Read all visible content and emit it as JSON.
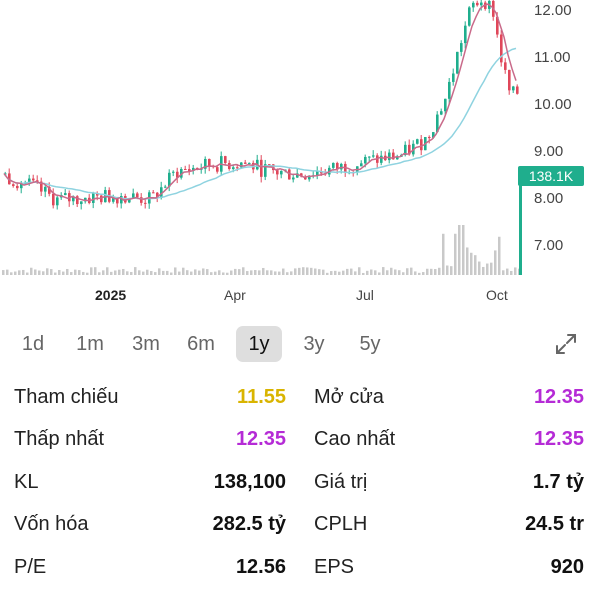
{
  "chart": {
    "y_axis_labels": [
      "12.00",
      "11.00",
      "10.00",
      "9.00",
      "8.00",
      "7.00"
    ],
    "x_axis_labels": [
      "2025",
      "Apr",
      "Jul",
      "Oct"
    ],
    "current_volume_tag": "138.1K",
    "colors": {
      "up": "#1fae8d",
      "down": "#e0475a",
      "ma_fast": "#c96a8a",
      "ma_slow": "#8fd3e0",
      "volume": "#c9c9c9"
    }
  },
  "range_selector": {
    "options": [
      "1d",
      "1m",
      "3m",
      "6m",
      "1y",
      "3y",
      "5y"
    ],
    "selected": "1y",
    "expand_icon": "expand-diagonal-icon"
  },
  "stats": {
    "rows": [
      {
        "left_label": "Tham chiếu",
        "left_value": "11.55",
        "right_label": "Mở cửa",
        "right_value": "12.35"
      },
      {
        "left_label": "Thấp nhất",
        "left_value": "12.35",
        "right_label": "Cao nhất",
        "right_value": "12.35"
      },
      {
        "left_label": "KL",
        "left_value": "138,100",
        "right_label": "Giá trị",
        "right_value": "1.7 tỷ"
      },
      {
        "left_label": "Vốn hóa",
        "left_value": "282.5 tỷ",
        "right_label": "CPLH",
        "right_value": "24.5 tr"
      },
      {
        "left_label": "P/E",
        "left_value": "12.56",
        "right_label": "EPS",
        "right_value": "920"
      }
    ]
  }
}
